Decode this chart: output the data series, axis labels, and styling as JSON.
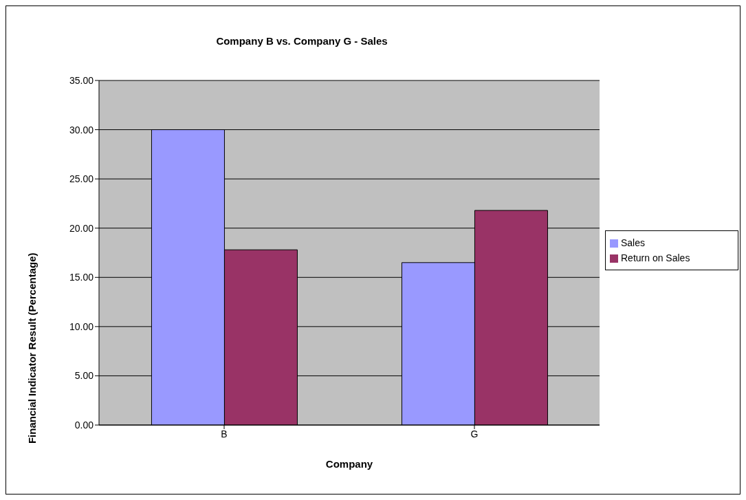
{
  "chart_data": {
    "type": "bar",
    "title": "Company B vs. Company G - Sales",
    "xlabel": "Company",
    "ylabel": "Financial Indicator Result (Percentage)",
    "categories": [
      "B",
      "G"
    ],
    "series": [
      {
        "name": "Sales",
        "color": "#9999ff",
        "values": [
          30.0,
          16.5
        ]
      },
      {
        "name": "Return on Sales",
        "color": "#993366",
        "values": [
          17.8,
          21.8
        ]
      }
    ],
    "ylim": [
      0,
      35
    ],
    "yticks": [
      {
        "value": 0,
        "label": "0.00"
      },
      {
        "value": 5,
        "label": "5.00"
      },
      {
        "value": 10,
        "label": "10.00"
      },
      {
        "value": 15,
        "label": "15.00"
      },
      {
        "value": 20,
        "label": "20.00"
      },
      {
        "value": 25,
        "label": "25.00"
      },
      {
        "value": 30,
        "label": "30.00"
      },
      {
        "value": 35,
        "label": "35.00"
      }
    ],
    "grid": "y",
    "legend": "right"
  }
}
